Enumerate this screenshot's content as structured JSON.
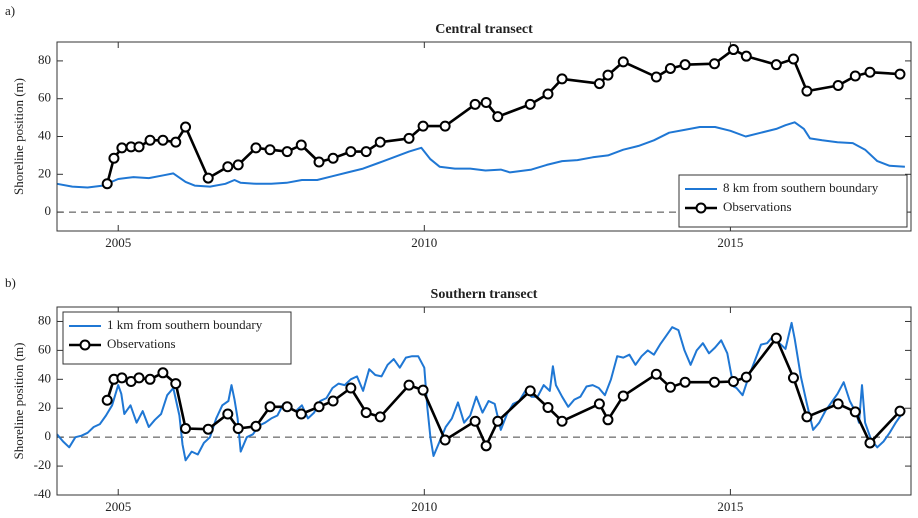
{
  "chart_data": [
    {
      "type": "line",
      "panel_label": "a)",
      "title": "Central transect",
      "ylabel": "Shoreline position (m)",
      "xlim": [
        2004,
        2017.95
      ],
      "ylim": [
        -10,
        90
      ],
      "xticks": [
        2005,
        2010,
        2015
      ],
      "yticks": [
        0,
        20,
        40,
        60,
        80
      ],
      "reference_line": 0,
      "legend": "lower right",
      "series": [
        {
          "name": "8 km from southern boundary",
          "color": "#1f77d4",
          "marker": null,
          "x": [
            2004.0,
            2004.25,
            2004.5,
            2004.75,
            2005.0,
            2005.25,
            2005.5,
            2005.75,
            2005.9,
            2006.1,
            2006.25,
            2006.5,
            2006.75,
            2006.9,
            2007.0,
            2007.25,
            2007.5,
            2007.75,
            2008.0,
            2008.25,
            2008.5,
            2008.75,
            2009.0,
            2009.25,
            2009.5,
            2009.75,
            2009.95,
            2010.1,
            2010.25,
            2010.5,
            2010.75,
            2011.0,
            2011.25,
            2011.4,
            2011.75,
            2012.0,
            2012.25,
            2012.5,
            2012.75,
            2013.0,
            2013.25,
            2013.5,
            2013.75,
            2014.0,
            2014.25,
            2014.5,
            2014.75,
            2015.0,
            2015.25,
            2015.5,
            2015.75,
            2015.9,
            2016.05,
            2016.2,
            2016.3,
            2016.5,
            2016.75,
            2017.0,
            2017.2,
            2017.4,
            2017.6,
            2017.85
          ],
          "values": [
            15,
            13.5,
            13,
            14,
            17.5,
            18.5,
            18,
            19.5,
            20.5,
            16,
            14,
            13.5,
            15,
            17,
            15.5,
            15,
            15,
            15.5,
            17,
            17,
            19,
            21,
            23,
            26,
            29,
            32,
            34,
            28,
            24,
            23,
            23,
            22,
            22.5,
            21,
            22.5,
            25,
            27,
            27.5,
            29,
            30,
            33,
            35,
            38,
            42,
            43.5,
            45,
            45,
            43,
            40,
            42,
            44,
            46,
            47.5,
            44,
            39,
            38,
            37,
            36.5,
            33,
            27,
            24.5,
            24
          ]
        },
        {
          "name": "Observations",
          "color": "#000000",
          "marker": "circle",
          "x": [
            2004.82,
            2004.93,
            2005.06,
            2005.21,
            2005.34,
            2005.52,
            2005.73,
            2005.94,
            2006.1,
            2006.47,
            2006.79,
            2006.96,
            2007.25,
            2007.48,
            2007.76,
            2007.99,
            2008.28,
            2008.51,
            2008.8,
            2009.05,
            2009.28,
            2009.75,
            2009.98,
            2010.34,
            2010.83,
            2011.01,
            2011.2,
            2011.73,
            2012.02,
            2012.25,
            2012.86,
            2013.0,
            2013.25,
            2013.79,
            2014.02,
            2014.26,
            2014.74,
            2015.05,
            2015.26,
            2015.75,
            2016.03,
            2016.25,
            2016.76,
            2017.04,
            2017.28,
            2017.77
          ],
          "values": [
            15,
            28.5,
            34,
            34.5,
            34.5,
            38,
            38,
            37,
            45,
            18,
            24,
            25,
            34,
            33,
            32,
            35.5,
            26.5,
            28.5,
            32,
            32,
            37,
            39,
            45.5,
            45.5,
            57,
            58,
            50.5,
            57,
            62.5,
            70.5,
            68,
            72.5,
            79.5,
            71.5,
            76,
            78,
            78.5,
            86,
            82.5,
            78,
            81,
            64,
            67,
            72,
            74,
            73
          ]
        }
      ]
    },
    {
      "type": "line",
      "panel_label": "b)",
      "title": "Southern transect",
      "ylabel": "Shoreline position (m)",
      "xlim": [
        2004,
        2017.95
      ],
      "ylim": [
        -40,
        90
      ],
      "xticks": [
        2005,
        2010,
        2015
      ],
      "yticks": [
        -40,
        -20,
        0,
        20,
        40,
        60,
        80
      ],
      "reference_line": 0,
      "legend": "upper left",
      "series": [
        {
          "name": "1 km from southern boundary",
          "color": "#1f77d4",
          "marker": null,
          "x": [
            2004.0,
            2004.1,
            2004.2,
            2004.3,
            2004.4,
            2004.5,
            2004.6,
            2004.7,
            2004.8,
            2004.9,
            2005.0,
            2005.05,
            2005.1,
            2005.2,
            2005.3,
            2005.4,
            2005.5,
            2005.6,
            2005.7,
            2005.8,
            2005.9,
            2006.0,
            2006.05,
            2006.1,
            2006.2,
            2006.3,
            2006.4,
            2006.5,
            2006.6,
            2006.7,
            2006.8,
            2006.85,
            2006.9,
            2006.95,
            2007.0,
            2007.1,
            2007.2,
            2007.3,
            2007.4,
            2007.5,
            2007.6,
            2007.7,
            2007.8,
            2007.9,
            2008.0,
            2008.1,
            2008.2,
            2008.3,
            2008.4,
            2008.5,
            2008.6,
            2008.7,
            2008.8,
            2008.9,
            2009.0,
            2009.1,
            2009.2,
            2009.3,
            2009.4,
            2009.5,
            2009.6,
            2009.7,
            2009.8,
            2009.9,
            2010.0,
            2010.05,
            2010.1,
            2010.15,
            2010.25,
            2010.35,
            2010.45,
            2010.55,
            2010.65,
            2010.75,
            2010.85,
            2010.95,
            2011.05,
            2011.15,
            2011.25,
            2011.35,
            2011.45,
            2011.55,
            2011.65,
            2011.75,
            2011.85,
            2011.95,
            2012.05,
            2012.1,
            2012.15,
            2012.25,
            2012.35,
            2012.45,
            2012.55,
            2012.65,
            2012.75,
            2012.85,
            2012.95,
            2013.05,
            2013.15,
            2013.25,
            2013.35,
            2013.45,
            2013.55,
            2013.65,
            2013.75,
            2013.85,
            2013.95,
            2014.05,
            2014.15,
            2014.25,
            2014.35,
            2014.45,
            2014.55,
            2014.65,
            2014.75,
            2014.85,
            2014.95,
            2015.05,
            2015.1,
            2015.2,
            2015.3,
            2015.4,
            2015.5,
            2015.6,
            2015.7,
            2015.8,
            2015.9,
            2016.0,
            2016.05,
            2016.15,
            2016.25,
            2016.35,
            2016.45,
            2016.55,
            2016.65,
            2016.75,
            2016.85,
            2016.95,
            2017.05,
            2017.1,
            2017.15,
            2017.2,
            2017.3,
            2017.4,
            2017.5,
            2017.6,
            2017.7,
            2017.8
          ],
          "values": [
            2,
            -3,
            -7,
            0,
            1,
            3,
            7,
            9,
            15,
            22,
            36,
            30,
            16,
            22,
            10,
            18,
            7,
            12,
            16,
            29,
            34,
            15,
            -5,
            -16,
            -10,
            -12,
            -4,
            0,
            13,
            22,
            25,
            36,
            26,
            13,
            -10,
            0,
            2,
            8,
            10,
            13,
            15,
            23,
            20,
            18,
            22,
            13,
            17,
            25,
            27,
            34,
            37,
            36,
            40,
            42,
            32,
            47,
            43,
            42,
            50,
            54,
            48,
            55,
            56,
            56,
            48,
            20,
            0,
            -13,
            -3,
            7,
            13,
            24,
            10,
            15,
            28,
            17,
            25,
            23,
            5,
            16,
            23,
            25,
            32,
            28,
            28,
            36,
            32,
            49,
            36,
            28,
            21,
            26,
            28,
            35,
            36,
            34,
            29,
            40,
            56,
            55,
            57,
            50,
            56,
            60,
            57,
            64,
            70,
            76,
            74,
            60,
            50,
            60,
            65,
            58,
            62,
            67,
            58,
            35,
            34,
            29,
            42,
            53,
            64,
            65,
            70,
            65,
            61,
            79,
            68,
            42,
            23,
            5,
            10,
            18,
            24,
            30,
            38,
            25,
            17,
            10,
            36,
            10,
            -2,
            -7,
            -3,
            3,
            10,
            16
          ]
        },
        {
          "name": "Observations",
          "color": "#000000",
          "marker": "circle",
          "x": [
            2004.82,
            2004.93,
            2005.06,
            2005.21,
            2005.34,
            2005.52,
            2005.73,
            2005.94,
            2006.1,
            2006.47,
            2006.79,
            2006.96,
            2007.25,
            2007.48,
            2007.76,
            2007.99,
            2008.28,
            2008.51,
            2008.8,
            2009.05,
            2009.28,
            2009.75,
            2009.98,
            2010.34,
            2010.83,
            2011.01,
            2011.2,
            2011.73,
            2012.02,
            2012.25,
            2012.86,
            2013.0,
            2013.25,
            2013.79,
            2014.02,
            2014.26,
            2014.74,
            2015.05,
            2015.26,
            2015.75,
            2016.03,
            2016.25,
            2016.76,
            2017.04,
            2017.28,
            2017.77
          ],
          "values": [
            25.5,
            40,
            41,
            38.5,
            41,
            40,
            44.5,
            37,
            6,
            5.5,
            16,
            6,
            7.5,
            21,
            21,
            16,
            21,
            25,
            34,
            17,
            14,
            36,
            32.5,
            -2,
            11,
            -6,
            11,
            32,
            20.5,
            11,
            23,
            12,
            28.5,
            43.5,
            34.5,
            38,
            38,
            38.5,
            41.5,
            68.5,
            41,
            14,
            23,
            17.5,
            -4,
            18
          ]
        }
      ]
    }
  ]
}
